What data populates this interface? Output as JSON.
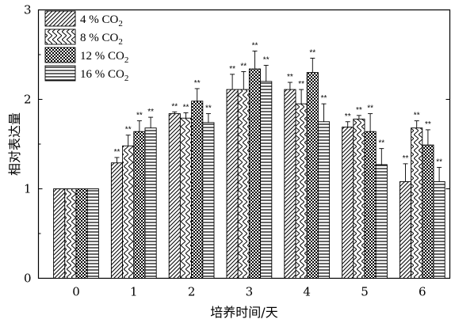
{
  "chart_data": {
    "type": "bar",
    "title": "",
    "xlabel": "培养时间/天",
    "ylabel": "相对表达量",
    "ylim": [
      0,
      3
    ],
    "yticks": [
      "0",
      "1",
      "2",
      "3"
    ],
    "categories": [
      "0",
      "1",
      "2",
      "3",
      "4",
      "5",
      "6"
    ],
    "legend_position": "top-left",
    "series": [
      {
        "name": "4 % CO",
        "subscript": "2",
        "pattern": "diagonal",
        "values": [
          1.0,
          1.29,
          1.84,
          2.11,
          2.11,
          1.69,
          1.08
        ],
        "errors": [
          0,
          0.06,
          0.02,
          0.17,
          0.08,
          0.06,
          0.2
        ],
        "significance": [
          "",
          "**",
          "**",
          "**",
          "**",
          "**",
          "**"
        ]
      },
      {
        "name": "8 % CO",
        "subscript": "2",
        "pattern": "chevron",
        "values": [
          1.0,
          1.48,
          1.79,
          2.11,
          1.95,
          1.78,
          1.68
        ],
        "errors": [
          0,
          0.12,
          0.06,
          0.2,
          0.16,
          0.04,
          0.08
        ],
        "significance": [
          "",
          "**",
          "**",
          "**",
          "**",
          "**",
          "**"
        ]
      },
      {
        "name": "12 % CO",
        "subscript": "2",
        "pattern": "checker",
        "values": [
          1.0,
          1.64,
          1.98,
          2.34,
          2.3,
          1.64,
          1.49
        ],
        "errors": [
          0,
          0.12,
          0.14,
          0.2,
          0.16,
          0.2,
          0.17
        ],
        "significance": [
          "",
          "**",
          "**",
          "**",
          "**",
          "**",
          "**"
        ]
      },
      {
        "name": "16 % CO",
        "subscript": "2",
        "pattern": "horizontal",
        "values": [
          1.0,
          1.68,
          1.74,
          2.2,
          1.75,
          1.27,
          1.08
        ],
        "errors": [
          0,
          0.12,
          0.1,
          0.18,
          0.2,
          0.18,
          0.16
        ],
        "significance": [
          "",
          "**",
          "**",
          "**",
          "**",
          "**",
          "**"
        ]
      }
    ]
  }
}
